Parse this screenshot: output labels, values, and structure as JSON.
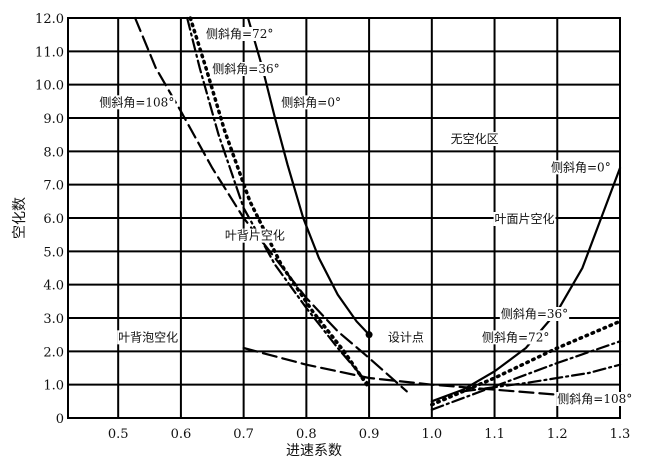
{
  "chart_data": {
    "type": "line",
    "title": "",
    "xlabel": "进速系数",
    "ylabel": "空化数",
    "xlim": [
      0.42,
      1.3
    ],
    "ylim": [
      0,
      12
    ],
    "grid": true,
    "x_ticks": [
      "0.5",
      "0.6",
      "0.7",
      "0.8",
      "0.9",
      "1.0",
      "1.1",
      "1.2",
      "1.3"
    ],
    "x_tick_values": [
      0.5,
      0.6,
      0.7,
      0.8,
      0.9,
      1.0,
      1.1,
      1.2,
      1.3
    ],
    "y_ticks": [
      "0",
      "1.0",
      "2.0",
      "3.0",
      "4.0",
      "5.0",
      "6.0",
      "7.0",
      "8.0",
      "9.0",
      "10.0",
      "11.0",
      "12.0"
    ],
    "y_tick_values": [
      0,
      1,
      2,
      3,
      4,
      5,
      6,
      7,
      8,
      9,
      10,
      11,
      12
    ],
    "series": [
      {
        "name": "侧斜角=0° (叶背)",
        "style": "solid",
        "points": [
          [
            0.707,
            12
          ],
          [
            0.73,
            10.5
          ],
          [
            0.75,
            9
          ],
          [
            0.77,
            7.6
          ],
          [
            0.795,
            6
          ],
          [
            0.82,
            4.8
          ],
          [
            0.85,
            3.7
          ],
          [
            0.88,
            2.9
          ],
          [
            0.9,
            2.5
          ]
        ]
      },
      {
        "name": "侧斜角=72° (叶背)",
        "style": "dashdot",
        "points": [
          [
            0.61,
            12
          ],
          [
            0.63,
            10.5
          ],
          [
            0.66,
            8.5
          ],
          [
            0.7,
            6.3
          ],
          [
            0.75,
            4.6
          ],
          [
            0.8,
            3.3
          ],
          [
            0.85,
            2.1
          ],
          [
            0.9,
            1.0
          ]
        ]
      },
      {
        "name": "侧斜角=36° (叶背)",
        "style": "dotted",
        "points": [
          [
            0.615,
            12
          ],
          [
            0.64,
            10.5
          ],
          [
            0.67,
            8.6
          ],
          [
            0.71,
            6.5
          ],
          [
            0.76,
            4.6
          ],
          [
            0.81,
            3.2
          ],
          [
            0.86,
            2.0
          ],
          [
            0.9,
            0.9
          ]
        ]
      },
      {
        "name": "侧斜角=108° (叶背)",
        "style": "longdash",
        "points": [
          [
            0.527,
            12
          ],
          [
            0.56,
            10.5
          ],
          [
            0.6,
            9.2
          ],
          [
            0.65,
            7.5
          ],
          [
            0.7,
            6.0
          ],
          [
            0.75,
            4.8
          ],
          [
            0.8,
            3.6
          ],
          [
            0.85,
            2.6
          ],
          [
            0.9,
            1.8
          ],
          [
            0.96,
            0.8
          ]
        ]
      },
      {
        "name": "侧斜角=108° (过渡)",
        "style": "longdash",
        "points": [
          [
            0.7,
            2.1
          ],
          [
            0.8,
            1.6
          ],
          [
            0.9,
            1.2
          ],
          [
            1.0,
            1.0
          ],
          [
            1.1,
            0.85
          ],
          [
            1.2,
            0.7
          ]
        ]
      },
      {
        "name": "侧斜角=0° (叶面)",
        "style": "solid",
        "points": [
          [
            1.0,
            0.5
          ],
          [
            1.05,
            0.85
          ],
          [
            1.1,
            1.4
          ],
          [
            1.15,
            2.1
          ],
          [
            1.2,
            3.2
          ],
          [
            1.24,
            4.5
          ],
          [
            1.27,
            6
          ],
          [
            1.3,
            7.5
          ]
        ]
      },
      {
        "name": "侧斜角=36° (叶面)",
        "style": "dotted",
        "points": [
          [
            1.0,
            0.4
          ],
          [
            1.1,
            1.2
          ],
          [
            1.2,
            2.1
          ],
          [
            1.3,
            2.9
          ]
        ]
      },
      {
        "name": "侧斜角=72° (叶面)",
        "style": "dashdot",
        "points": [
          [
            1.0,
            0.25
          ],
          [
            1.1,
            0.95
          ],
          [
            1.2,
            1.65
          ],
          [
            1.3,
            2.3
          ]
        ]
      },
      {
        "name": "侧斜角=108° (叶面)",
        "style": "dashdot",
        "points": [
          [
            1.05,
            0.8
          ],
          [
            1.15,
            1.05
          ],
          [
            1.25,
            1.35
          ],
          [
            1.3,
            1.6
          ]
        ]
      }
    ],
    "annotations": [
      {
        "text": "侧斜角=72°",
        "x": 0.64,
        "y": 11.55
      },
      {
        "text": "侧斜角=36°",
        "x": 0.65,
        "y": 10.5
      },
      {
        "text": "侧斜角=108°",
        "x": 0.47,
        "y": 9.5
      },
      {
        "text": "侧斜角=0°",
        "x": 0.76,
        "y": 9.5
      },
      {
        "text": "无空化区",
        "x": 1.03,
        "y": 8.4
      },
      {
        "text": "侧斜角=0°",
        "x": 1.19,
        "y": 7.55
      },
      {
        "text": "叶面片空化",
        "x": 1.1,
        "y": 6.0
      },
      {
        "text": "叶背片空化",
        "x": 0.67,
        "y": 5.5
      },
      {
        "text": "侧斜角=36°",
        "x": 1.11,
        "y": 3.15
      },
      {
        "text": "叶背泡空化",
        "x": 0.5,
        "y": 2.45
      },
      {
        "text": "设计点",
        "x": 0.93,
        "y": 2.45
      },
      {
        "text": "侧斜角=72°",
        "x": 1.08,
        "y": 2.45
      },
      {
        "text": "侧斜角=108°",
        "x": 1.2,
        "y": 0.6
      }
    ]
  }
}
